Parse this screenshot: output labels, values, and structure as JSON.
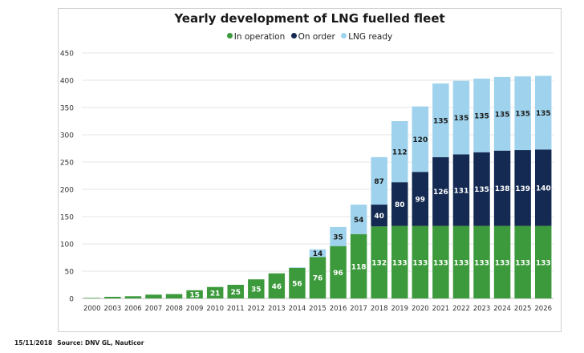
{
  "chart_data": {
    "type": "bar",
    "stacked": true,
    "title": "Yearly development of LNG fuelled fleet",
    "categories": [
      "2000",
      "2003",
      "2006",
      "2007",
      "2008",
      "2009",
      "2010",
      "2011",
      "2012",
      "2013",
      "2014",
      "2015",
      "2016",
      "2017",
      "2018",
      "2019",
      "2020",
      "2021",
      "2022",
      "2023",
      "2024",
      "2025",
      "2026"
    ],
    "series": [
      {
        "name": "In operation",
        "color": "#3c9a3c",
        "values": [
          1,
          3,
          4,
          7,
          8,
          15,
          21,
          25,
          35,
          46,
          56,
          76,
          96,
          118,
          132,
          133,
          133,
          133,
          133,
          133,
          133,
          133,
          133
        ],
        "labels": [
          "",
          "",
          "",
          "",
          "",
          "15",
          "21",
          "25",
          "35",
          "46",
          "56",
          "76",
          "96",
          "118",
          "132",
          "133",
          "133",
          "133",
          "133",
          "133",
          "133",
          "133",
          "133"
        ]
      },
      {
        "name": "On order",
        "color": "#142a52",
        "values": [
          0,
          0,
          0,
          0,
          0,
          0,
          0,
          0,
          0,
          0,
          0,
          0,
          0,
          0,
          40,
          80,
          99,
          126,
          131,
          135,
          138,
          139,
          140
        ],
        "labels": [
          "",
          "",
          "",
          "",
          "",
          "",
          "",
          "",
          "",
          "",
          "",
          "",
          "",
          "",
          "40",
          "80",
          "99",
          "126",
          "131",
          "135",
          "138",
          "139",
          "140"
        ]
      },
      {
        "name": "LNG ready",
        "color": "#9fd2ec",
        "values": [
          0,
          0,
          0,
          0,
          0,
          0,
          0,
          0,
          0,
          0,
          1,
          14,
          35,
          54,
          87,
          112,
          120,
          135,
          135,
          135,
          135,
          135,
          135
        ],
        "labels": [
          "",
          "",
          "",
          "",
          "",
          "",
          "",
          "",
          "",
          "",
          "",
          "14",
          "35",
          "54",
          "87",
          "112",
          "120",
          "135",
          "135",
          "135",
          "135",
          "135",
          "135"
        ]
      }
    ],
    "ylim": [
      0,
      450
    ],
    "yticks": [
      0,
      50,
      100,
      150,
      200,
      250,
      300,
      350,
      400,
      450
    ],
    "grid": true,
    "legend_position": "top"
  },
  "footer": {
    "date": "15/11/2018",
    "source": "Source: DNV GL, Nauticor"
  }
}
